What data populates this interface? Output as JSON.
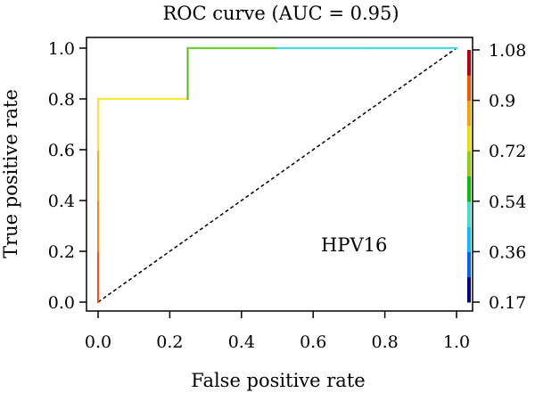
{
  "chart_data": {
    "type": "line",
    "title": "ROC curve (AUC = 0.95)",
    "xlabel": "False positive rate",
    "ylabel": "True positive rate",
    "xlim": [
      0,
      1
    ],
    "ylim": [
      0,
      1
    ],
    "xticks": [
      0.0,
      0.2,
      0.4,
      0.6,
      0.8,
      1.0
    ],
    "yticks": [
      0.0,
      0.2,
      0.4,
      0.6,
      0.8,
      1.0
    ],
    "xtick_labels": [
      "0.0",
      "0.2",
      "0.4",
      "0.6",
      "0.8",
      "1.0"
    ],
    "ytick_labels": [
      "0.0",
      "0.2",
      "0.4",
      "0.6",
      "0.8",
      "1.0"
    ],
    "annotation": "HPV16",
    "grid": false,
    "series": [
      {
        "x": [
          0,
          0,
          0,
          0,
          0,
          0.25,
          0.25,
          0.5,
          0.75,
          1.0
        ],
        "y": [
          0,
          0.2,
          0.4,
          0.6,
          0.8,
          0.8,
          1.0,
          1.0,
          1.0,
          1.0
        ],
        "colors": [
          "#cc0000",
          "#e8581a",
          "#f08a1e",
          "#f0b020",
          "#f4e83a",
          "#f4e83a",
          "#5cc020",
          "#70d030",
          "#40e0e0",
          "#40e0e0"
        ]
      }
    ],
    "reference_line": {
      "x": [
        0,
        1
      ],
      "y": [
        0,
        1
      ],
      "style": "dashed",
      "color": "#000000"
    },
    "colorbar": {
      "tick_labels": [
        "1.08",
        "0.9",
        "0.72",
        "0.54",
        "0.36",
        "0.17"
      ],
      "tick_values": [
        1.08,
        0.9,
        0.72,
        0.54,
        0.36,
        0.17
      ],
      "range": [
        0.17,
        1.08
      ],
      "colors": [
        "#00008b",
        "#0060ff",
        "#00c0ff",
        "#40e0d0",
        "#00c000",
        "#90d000",
        "#f0e000",
        "#ffa000",
        "#ff5000",
        "#c00000"
      ]
    }
  }
}
